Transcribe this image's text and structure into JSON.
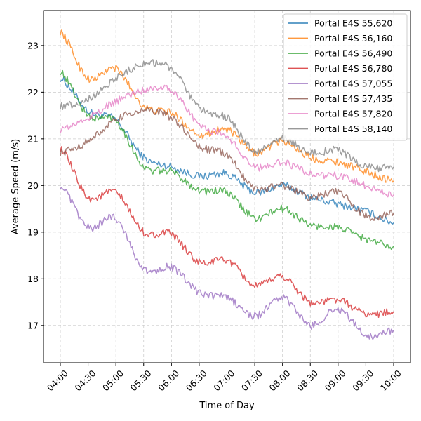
{
  "chart_data": {
    "type": "line",
    "xlabel": "Time of Day",
    "ylabel": "Average Speed (m/s)",
    "x": [
      "04:00",
      "04:30",
      "05:00",
      "05:30",
      "06:00",
      "06:30",
      "07:00",
      "07:30",
      "08:00",
      "08:30",
      "09:00",
      "09:30",
      "10:00"
    ],
    "xticks": [
      "04:00",
      "04:30",
      "05:00",
      "05:30",
      "06:00",
      "06:30",
      "07:00",
      "07:30",
      "08:00",
      "08:30",
      "09:00",
      "09:30",
      "10:00"
    ],
    "yticks": [
      17,
      18,
      19,
      20,
      21,
      22,
      23
    ],
    "ylim": [
      16.2,
      23.75
    ],
    "grid": true,
    "legend_position": "top-right",
    "series": [
      {
        "name": "Portal E4S 55,620",
        "color": "#1f77b4",
        "values": [
          22.3,
          21.6,
          21.4,
          20.6,
          20.4,
          20.2,
          20.25,
          19.85,
          20.0,
          19.75,
          19.6,
          19.45,
          19.2
        ]
      },
      {
        "name": "Portal E4S 56,160",
        "color": "#ff7f0e",
        "values": [
          23.3,
          22.3,
          22.5,
          21.7,
          21.55,
          21.1,
          21.2,
          20.7,
          20.95,
          20.6,
          20.5,
          20.3,
          20.1
        ]
      },
      {
        "name": "Portal E4S 56,490",
        "color": "#2ca02c",
        "values": [
          22.45,
          21.5,
          21.4,
          20.4,
          20.3,
          19.9,
          19.85,
          19.3,
          19.5,
          19.15,
          19.1,
          18.85,
          18.7
        ]
      },
      {
        "name": "Portal E4S 56,780",
        "color": "#d62728",
        "values": [
          20.8,
          19.75,
          19.85,
          19.0,
          18.95,
          18.35,
          18.4,
          17.85,
          18.05,
          17.5,
          17.55,
          17.25,
          17.3
        ]
      },
      {
        "name": "Portal E4S 57,055",
        "color": "#9467bd",
        "values": [
          20.0,
          19.1,
          19.3,
          18.2,
          18.25,
          17.7,
          17.6,
          17.2,
          17.6,
          17.0,
          17.35,
          16.8,
          16.9
        ]
      },
      {
        "name": "Portal E4S 57,435",
        "color": "#8c564b",
        "values": [
          20.7,
          20.95,
          21.4,
          21.6,
          21.45,
          20.85,
          20.65,
          19.95,
          20.0,
          19.75,
          19.85,
          19.35,
          19.4
        ]
      },
      {
        "name": "Portal E4S 57,820",
        "color": "#e377c2",
        "values": [
          21.2,
          21.45,
          21.8,
          22.05,
          22.05,
          21.3,
          21.05,
          20.4,
          20.5,
          20.25,
          20.2,
          20.0,
          19.8
        ]
      },
      {
        "name": "Portal E4S 58,140",
        "color": "#7f7f7f",
        "values": [
          21.7,
          21.85,
          22.3,
          22.6,
          22.5,
          21.65,
          21.45,
          20.75,
          21.0,
          20.7,
          20.75,
          20.4,
          20.4
        ]
      }
    ]
  }
}
